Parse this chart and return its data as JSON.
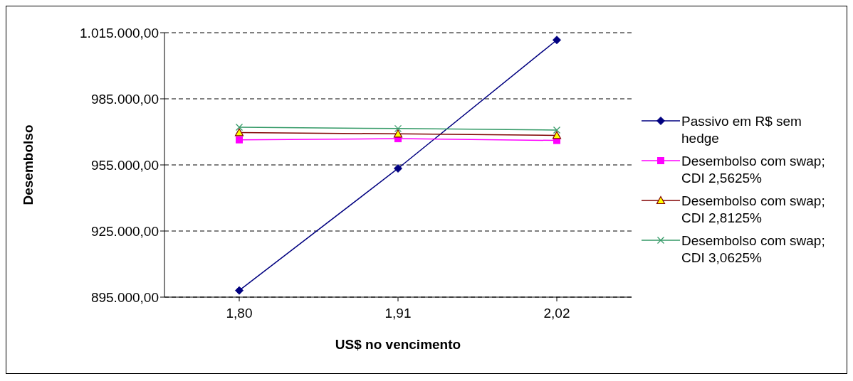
{
  "chart_data": {
    "type": "line",
    "xlabel": "US$ no vencimento",
    "ylabel": "Desembolso",
    "categories": [
      "1,80",
      "1,91",
      "2,02"
    ],
    "series": [
      {
        "name": "Passivo em R$ sem hedge",
        "color": "#000080",
        "marker": "diamond",
        "values": [
          898000,
          953400,
          1011700
        ]
      },
      {
        "name": "Desembolso com swap; CDI 2,5625%",
        "color": "#ff00ff",
        "marker": "square",
        "values": [
          966400,
          966900,
          966100
        ]
      },
      {
        "name": "Desembolso com swap; CDI 2,8125%",
        "color": "#800000",
        "marker": "triangle",
        "values": [
          969700,
          969100,
          968400
        ]
      },
      {
        "name": "Desembolso com swap; CDI 3,0625%",
        "color": "#339966",
        "marker": "cross",
        "values": [
          972100,
          971500,
          970800
        ]
      }
    ],
    "ylim": [
      895000,
      1015000
    ],
    "yticks": [
      {
        "value": 895000,
        "label": "895.000,00"
      },
      {
        "value": 925000,
        "label": "925.000,00"
      },
      {
        "value": 955000,
        "label": "955.000,00"
      },
      {
        "value": 985000,
        "label": "985.000,00"
      },
      {
        "value": 1015000,
        "label": "1.015.000,00"
      }
    ],
    "grid": "y",
    "legend": "right"
  }
}
